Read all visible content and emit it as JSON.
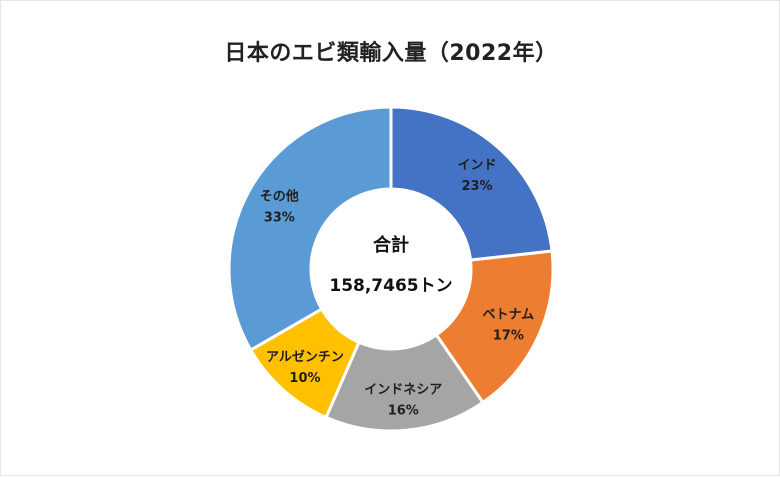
{
  "chart_data": {
    "type": "pie",
    "donut": true,
    "title": "日本のエビ類輸入量（2022年）",
    "center_text": {
      "line1": "合計",
      "line2": "158,7465トン"
    },
    "slices": [
      {
        "name": "インド",
        "value": 23,
        "label": "23%",
        "color": "#4472c4"
      },
      {
        "name": "ベトナム",
        "value": 17,
        "label": "17%",
        "color": "#ed7d31"
      },
      {
        "name": "インドネシア",
        "value": 16,
        "label": "16%",
        "color": "#a5a5a5"
      },
      {
        "name": "アルゼンチン",
        "value": 10,
        "label": "10%",
        "color": "#ffc000"
      },
      {
        "name": "その他",
        "value": 33,
        "label": "33%",
        "color": "#5b9bd5"
      }
    ],
    "legend": "none"
  }
}
